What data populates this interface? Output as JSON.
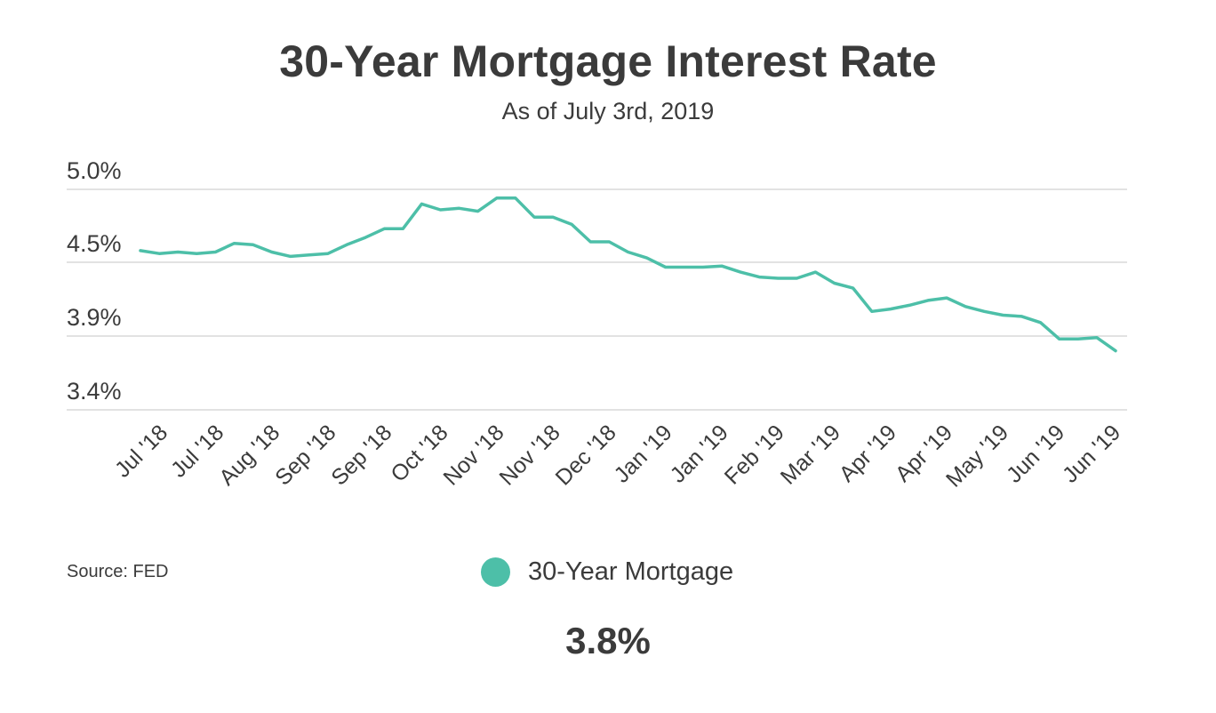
{
  "header": {
    "title": "30-Year Mortgage Interest Rate",
    "subtitle": "As of July 3rd, 2019"
  },
  "footer": {
    "source": "Source:  FED",
    "current_value": "3.8%"
  },
  "colors": {
    "line": "#4dbfa8",
    "grid": "#d9d9d9",
    "text": "#3b3b3b"
  },
  "chart_data": {
    "type": "line",
    "title": "30-Year Mortgage Interest Rate",
    "subtitle": "As of July 3rd, 2019",
    "xlabel": "",
    "ylabel": "",
    "y_ticks": [
      {
        "value": 5.0,
        "label": "5.0%"
      },
      {
        "value": 4.5,
        "label": "4.5%"
      },
      {
        "value": 3.9,
        "label": "3.9%"
      },
      {
        "value": 3.4,
        "label": "3.4%"
      }
    ],
    "x_tick_labels": [
      "Jul '18",
      "Jul '18",
      "Aug '18",
      "Sep '18",
      "Sep '18",
      "Oct '18",
      "Nov '18",
      "Nov '18",
      "Dec '18",
      "Jan '19",
      "Jan '19",
      "Feb '19",
      "Mar '19",
      "Apr '19",
      "Apr '19",
      "May '19",
      "Jun '19",
      "Jun '19"
    ],
    "legend_position": "bottom-center",
    "grid": true,
    "series": [
      {
        "name": "30-Year Mortgage",
        "values": [
          4.58,
          4.56,
          4.57,
          4.56,
          4.57,
          4.63,
          4.62,
          4.57,
          4.54,
          4.55,
          4.56,
          4.62,
          4.67,
          4.73,
          4.73,
          4.9,
          4.86,
          4.87,
          4.85,
          4.94,
          4.94,
          4.81,
          4.81,
          4.76,
          4.64,
          4.64,
          4.57,
          4.53,
          4.46,
          4.46,
          4.46,
          4.47,
          4.42,
          4.38,
          4.37,
          4.37,
          4.42,
          4.33,
          4.29,
          4.1,
          4.12,
          4.15,
          4.19,
          4.21,
          4.14,
          4.1,
          4.07,
          4.06,
          4.01,
          3.88,
          3.88,
          3.89,
          3.8
        ]
      }
    ]
  }
}
